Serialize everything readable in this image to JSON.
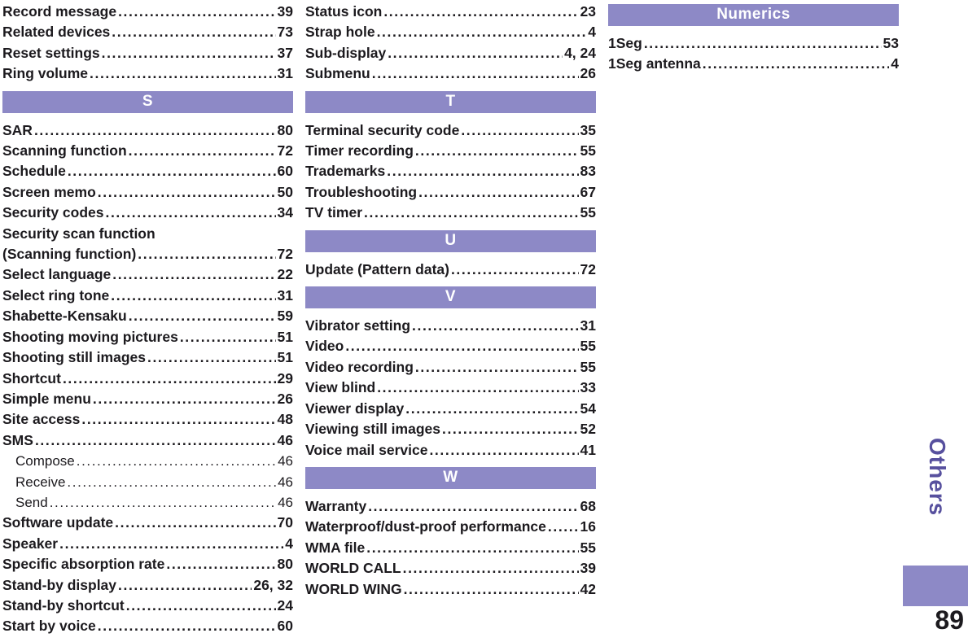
{
  "page_number": "89",
  "side_tab": "Others",
  "colors": {
    "accent": "#8d89c6",
    "tab_text": "#57509e",
    "ink": "#1c1a1e"
  },
  "columns": [
    {
      "sections": [
        {
          "header": "",
          "entries": [
            {
              "label": "Record message",
              "page": "39"
            },
            {
              "label": "Related devices",
              "page": "73"
            },
            {
              "label": "Reset settings",
              "page": "37"
            },
            {
              "label": "Ring volume",
              "page": "31"
            }
          ]
        },
        {
          "header": "S",
          "entries": [
            {
              "label": "SAR",
              "page": "80"
            },
            {
              "label": "Scanning function",
              "page": "72"
            },
            {
              "label": "Schedule",
              "page": "60"
            },
            {
              "label": "Screen memo",
              "page": "50"
            },
            {
              "label": "Security codes",
              "page": "34"
            },
            {
              "label": "Security scan function",
              "page": ""
            },
            {
              "label": "(Scanning function)",
              "page": "72"
            },
            {
              "label": "Select language",
              "page": "22"
            },
            {
              "label": "Select ring tone",
              "page": "31"
            },
            {
              "label": "Shabette-Kensaku",
              "page": "59"
            },
            {
              "label": "Shooting moving pictures",
              "page": "51"
            },
            {
              "label": "Shooting still images",
              "page": "51"
            },
            {
              "label": "Shortcut",
              "page": "29"
            },
            {
              "label": "Simple menu",
              "page": "26"
            },
            {
              "label": "Site access",
              "page": "48"
            },
            {
              "label": "SMS",
              "page": "46"
            },
            {
              "label": "Compose",
              "page": "46",
              "sub": true
            },
            {
              "label": "Receive",
              "page": "46",
              "sub": true
            },
            {
              "label": "Send",
              "page": "46",
              "sub": true
            },
            {
              "label": "Software update",
              "page": "70"
            },
            {
              "label": "Speaker",
              "page": "4"
            },
            {
              "label": "Specific absorption rate",
              "page": "80"
            },
            {
              "label": "Stand-by display",
              "page": "26, 32"
            },
            {
              "label": "Stand-by shortcut",
              "page": "24"
            },
            {
              "label": "Start by voice",
              "page": "60"
            }
          ]
        }
      ]
    },
    {
      "sections": [
        {
          "header": "",
          "entries": [
            {
              "label": "Status icon",
              "page": "23"
            },
            {
              "label": "Strap hole",
              "page": "4"
            },
            {
              "label": "Sub-display",
              "page": "4, 24"
            },
            {
              "label": "Submenu",
              "page": "26"
            }
          ]
        },
        {
          "header": "T",
          "entries": [
            {
              "label": "Terminal security code",
              "page": "35"
            },
            {
              "label": "Timer recording",
              "page": "55"
            },
            {
              "label": "Trademarks",
              "page": "83"
            },
            {
              "label": "Troubleshooting",
              "page": "67"
            },
            {
              "label": "TV timer",
              "page": "55"
            }
          ]
        },
        {
          "header": "U",
          "entries": [
            {
              "label": "Update (Pattern data)",
              "page": "72"
            }
          ]
        },
        {
          "header": "V",
          "entries": [
            {
              "label": "Vibrator setting",
              "page": "31"
            },
            {
              "label": "Video",
              "page": "55"
            },
            {
              "label": "Video recording",
              "page": "55"
            },
            {
              "label": "View blind",
              "page": "33"
            },
            {
              "label": "Viewer display",
              "page": "54"
            },
            {
              "label": "Viewing still images",
              "page": "52"
            },
            {
              "label": "Voice mail service",
              "page": "41"
            }
          ]
        },
        {
          "header": "W",
          "entries": [
            {
              "label": "Warranty",
              "page": "68"
            },
            {
              "label": "Waterproof/dust-proof performance",
              "page": "16"
            },
            {
              "label": "WMA file",
              "page": "55"
            },
            {
              "label": "WORLD CALL",
              "page": "39"
            },
            {
              "label": "WORLD WING",
              "page": "42"
            }
          ]
        }
      ]
    },
    {
      "sections": [
        {
          "header": "Numerics",
          "entries": [
            {
              "label": "1Seg",
              "page": "53"
            },
            {
              "label": "1Seg antenna",
              "page": "4"
            }
          ]
        }
      ]
    }
  ]
}
